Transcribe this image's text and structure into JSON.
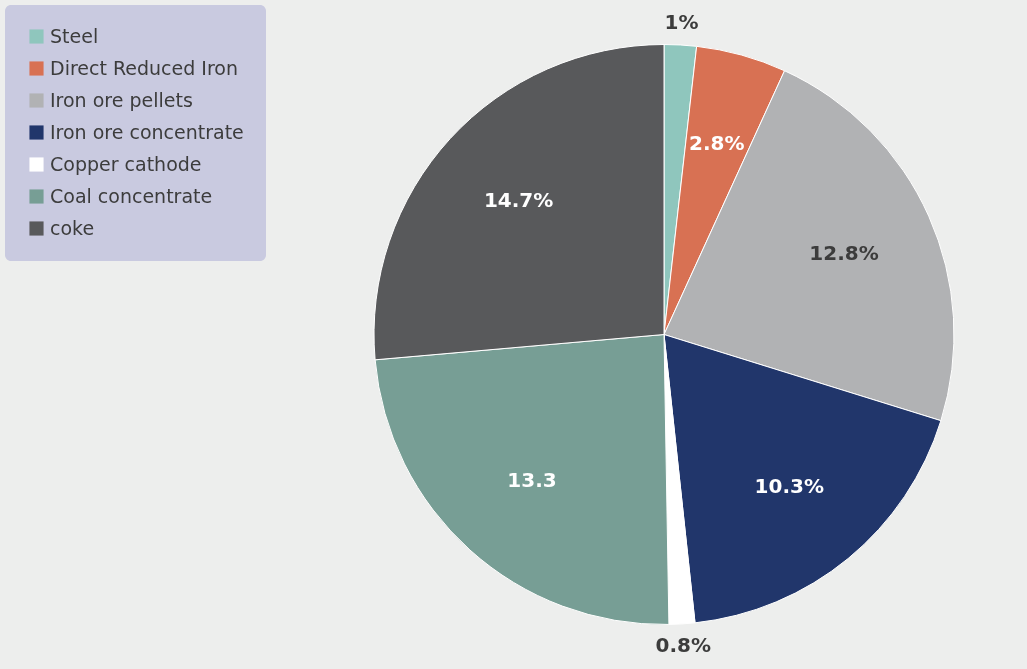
{
  "chart_data": {
    "type": "pie",
    "categories": [
      "Steel",
      "Direct Reduced Iron",
      "Iron ore pellets",
      "Iron ore concentrate",
      "Copper cathode",
      "Coal concentrate",
      "coke"
    ],
    "values": [
      1,
      2.8,
      12.8,
      10.3,
      0.8,
      13.3,
      14.7
    ],
    "value_labels": [
      "1%",
      "2.8%",
      "12.8%",
      "10.3%",
      "0.8%",
      "13.3",
      "14.7%"
    ],
    "colors": [
      "#8fc6bd",
      "#d87153",
      "#b1b2b4",
      "#21366b",
      "#ffffff",
      "#779e95",
      "#58595b"
    ],
    "legend": "left"
  }
}
